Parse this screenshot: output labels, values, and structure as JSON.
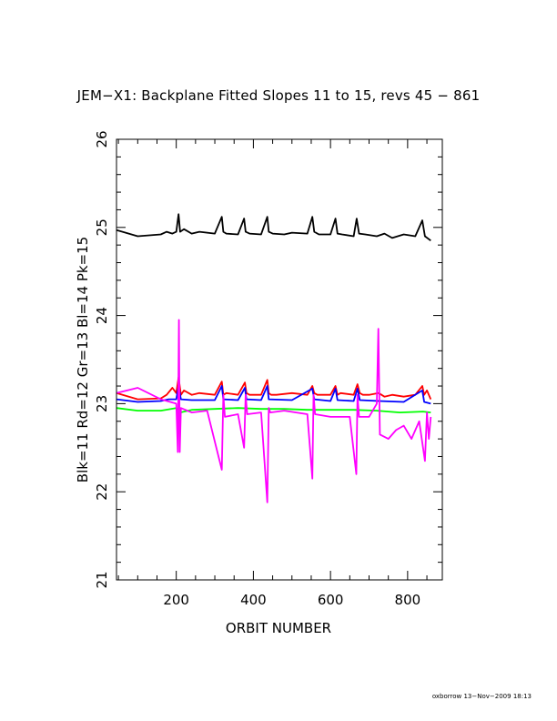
{
  "title": "JEM−X1: Backplane Fitted Slopes 11 to 15, revs 45 − 861",
  "footer": "oxborrow 13−Nov−2009 18:13",
  "chart_data": {
    "type": "line",
    "xlabel": "ORBIT NUMBER",
    "ylabel": "Blk=11  Rd=12  Gr=13  Bl=14  Pk=15",
    "xlim": [
      45,
      890
    ],
    "ylim": [
      21,
      26
    ],
    "xticks": [
      200,
      400,
      600,
      800
    ],
    "yticks": [
      21,
      22,
      23,
      24,
      25,
      26
    ],
    "grid": false,
    "series": [
      {
        "color": "#ff0000",
        "x": [
          45,
          100,
          160,
          175,
          190,
          200,
          206,
          212,
          220,
          240,
          260,
          300,
          318,
          322,
          330,
          360,
          378,
          382,
          390,
          420,
          436,
          440,
          446,
          460,
          500,
          540,
          553,
          558,
          566,
          600,
          613,
          618,
          626,
          660,
          670,
          676,
          684,
          700,
          725,
          740,
          760,
          790,
          820,
          838,
          843,
          850,
          860
        ],
        "y": [
          23.12,
          23.05,
          23.06,
          23.1,
          23.18,
          23.12,
          23.3,
          23.1,
          23.15,
          23.1,
          23.12,
          23.1,
          23.25,
          23.1,
          23.12,
          23.1,
          23.24,
          23.12,
          23.1,
          23.1,
          23.27,
          23.12,
          23.1,
          23.1,
          23.12,
          23.1,
          23.2,
          23.12,
          23.1,
          23.1,
          23.2,
          23.1,
          23.12,
          23.1,
          23.22,
          23.12,
          23.1,
          23.1,
          23.12,
          23.08,
          23.1,
          23.08,
          23.1,
          23.2,
          23.1,
          23.15,
          23.05
        ]
      },
      {
        "color": "#0000ff",
        "x": [
          45,
          100,
          160,
          180,
          200,
          206,
          212,
          240,
          300,
          318,
          322,
          360,
          378,
          382,
          420,
          436,
          440,
          500,
          553,
          558,
          600,
          613,
          618,
          660,
          670,
          676,
          725,
          790,
          838,
          843,
          860
        ],
        "y": [
          23.05,
          23.02,
          23.03,
          23.05,
          23.05,
          23.2,
          23.05,
          23.04,
          23.04,
          23.2,
          23.05,
          23.04,
          23.18,
          23.05,
          23.04,
          23.2,
          23.05,
          23.04,
          23.17,
          23.05,
          23.03,
          23.17,
          23.04,
          23.03,
          23.17,
          23.04,
          23.03,
          23.02,
          23.15,
          23.02,
          23.0
        ]
      },
      {
        "color": "#00ff00",
        "x": [
          45,
          100,
          160,
          200,
          210,
          240,
          300,
          360,
          420,
          480,
          540,
          600,
          660,
          720,
          780,
          840,
          860
        ],
        "y": [
          22.95,
          22.92,
          22.92,
          22.95,
          22.9,
          22.93,
          22.94,
          22.95,
          22.94,
          22.94,
          22.93,
          22.93,
          22.93,
          22.92,
          22.9,
          22.91,
          22.9
        ]
      },
      {
        "color": "#ff00ff",
        "x": [
          45,
          100,
          160,
          200,
          204,
          207,
          209,
          212,
          240,
          280,
          318,
          322,
          326,
          360,
          376,
          380,
          384,
          420,
          436,
          440,
          444,
          480,
          540,
          553,
          556,
          560,
          600,
          650,
          667,
          670,
          674,
          700,
          720,
          724,
          728,
          750,
          770,
          790,
          810,
          830,
          845,
          850,
          855,
          860
        ],
        "y": [
          23.12,
          23.18,
          23.05,
          23.0,
          22.45,
          23.95,
          22.45,
          22.95,
          22.9,
          22.92,
          22.25,
          23.1,
          22.85,
          22.88,
          22.5,
          23.1,
          22.88,
          22.9,
          21.88,
          22.95,
          22.9,
          22.92,
          22.88,
          22.15,
          23.1,
          22.88,
          22.85,
          22.85,
          22.2,
          23.1,
          22.85,
          22.85,
          23.0,
          23.85,
          22.65,
          22.6,
          22.7,
          22.75,
          22.6,
          22.8,
          22.35,
          22.9,
          22.6,
          22.85
        ]
      },
      {
        "color": "#000000",
        "x": [
          45,
          100,
          160,
          175,
          190,
          200,
          206,
          210,
          220,
          240,
          260,
          300,
          318,
          322,
          330,
          360,
          376,
          380,
          390,
          420,
          436,
          440,
          450,
          480,
          500,
          540,
          553,
          558,
          570,
          600,
          613,
          618,
          630,
          660,
          668,
          674,
          690,
          720,
          740,
          760,
          790,
          820,
          838,
          845,
          860
        ],
        "y": [
          24.97,
          24.9,
          24.92,
          24.95,
          24.93,
          24.95,
          25.15,
          24.95,
          24.98,
          24.93,
          24.95,
          24.93,
          25.12,
          24.95,
          24.93,
          24.92,
          25.1,
          24.95,
          24.93,
          24.92,
          25.12,
          24.95,
          24.93,
          24.92,
          24.94,
          24.93,
          25.12,
          24.95,
          24.92,
          24.92,
          25.1,
          24.93,
          24.92,
          24.9,
          25.1,
          24.93,
          24.92,
          24.9,
          24.93,
          24.88,
          24.92,
          24.9,
          25.08,
          24.9,
          24.85
        ]
      }
    ]
  }
}
